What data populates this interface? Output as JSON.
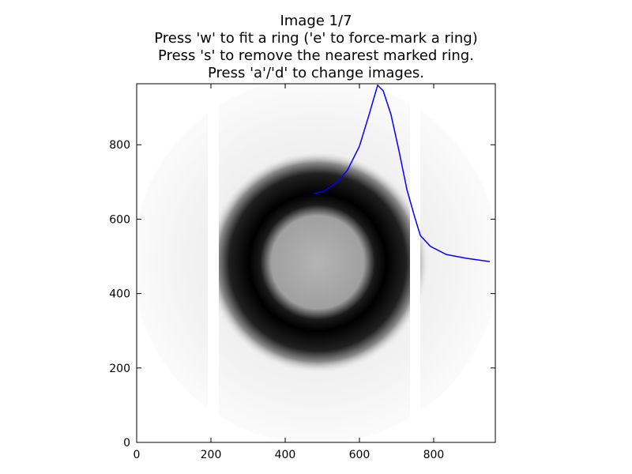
{
  "chart_data": {
    "type": "line",
    "title_lines": [
      "Image 1/7",
      "Press 'w' to fit a ring ('e' to force-mark a ring)",
      "Press 's' to remove the nearest marked ring.",
      "Press 'a'/'d' to change images."
    ],
    "x": [
      477,
      504,
      536,
      568,
      600,
      626,
      649,
      664,
      685,
      706,
      728,
      749,
      764,
      791,
      834,
      887,
      951
    ],
    "series": [
      {
        "color": "#0000ff",
        "values": [
          669,
          675,
          696,
          732,
          796,
          881,
          960,
          945,
          881,
          786,
          679,
          605,
          556,
          527,
          505,
          495,
          486
        ]
      }
    ],
    "xlim": [
      0,
      966
    ],
    "ylim": [
      0,
      964
    ],
    "xticks": [
      0,
      200,
      400,
      600,
      800
    ],
    "yticks": [
      0,
      200,
      400,
      600,
      800
    ]
  }
}
